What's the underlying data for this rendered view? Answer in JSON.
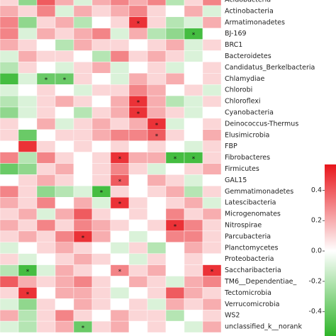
{
  "chart_data": {
    "type": "heatmap",
    "y_categories": [
      "Acidobacteria",
      "Actinobacteria",
      "Armatimonadetes",
      "BJ-169",
      "BRC1",
      "Bacteroidetes",
      "Candidatus_Berkelbacteria",
      "Chlamydiae",
      "Chlorobi",
      "Chloroflexi",
      "Cyanobacteria",
      "Deinococcus-Thermus",
      "Elusimicrobia",
      "FBP",
      "Fibrobacteres",
      "Firmicutes",
      "GAL15",
      "Gemmatimonadetes",
      "Latescibacteria",
      "Microgenomates",
      "Nitrospirae",
      "Parcubacteria",
      "Planctomycetes",
      "Proteobacteria",
      "Saccharibacteria",
      "TM6__Dependentiae_",
      "Tectomicrobia",
      "Verrucomicrobia",
      "WS2",
      "unclassified_k__norank"
    ],
    "values": [
      [
        0.1,
        -0.3,
        0.4,
        0.2,
        -0.1,
        0.2,
        0.3,
        0.2,
        0.3,
        -0.2,
        0.1,
        0.3
      ],
      [
        0.2,
        0.1,
        0.3,
        -0.1,
        0.2,
        0.1,
        0.2,
        0.3,
        0.1,
        0.0,
        0.2,
        -0.1
      ],
      [
        0.3,
        -0.3,
        0.1,
        0.2,
        -0.2,
        0.0,
        0.1,
        0.5,
        0.1,
        -0.2,
        -0.1,
        0.2
      ],
      [
        0.3,
        -0.1,
        0.2,
        0.1,
        0.2,
        0.3,
        -0.1,
        0.2,
        -0.2,
        -0.3,
        -0.5,
        0.0
      ],
      [
        0.2,
        0.1,
        0.0,
        -0.2,
        0.2,
        0.1,
        0.1,
        0.0,
        0.1,
        0.2,
        -0.1,
        0.1
      ],
      [
        -0.1,
        0.2,
        0.1,
        0.1,
        0.0,
        -0.2,
        0.3,
        0.1,
        0.2,
        0.1,
        -0.1,
        0.0
      ],
      [
        -0.2,
        0.1,
        0.0,
        -0.1,
        0.1,
        0.2,
        -0.1,
        0.0,
        0.1,
        -0.1,
        0.0,
        0.1
      ],
      [
        -0.5,
        -0.1,
        -0.4,
        -0.4,
        0.1,
        0.0,
        -0.1,
        0.2,
        0.1,
        0.2,
        0.0,
        0.1
      ],
      [
        -0.1,
        0.0,
        0.1,
        0.0,
        -0.1,
        0.1,
        0.1,
        0.3,
        0.2,
        0.0,
        0.1,
        -0.1
      ],
      [
        -0.2,
        -0.1,
        0.1,
        0.2,
        0.1,
        0.0,
        0.2,
        0.5,
        0.2,
        -0.2,
        -0.1,
        0.1
      ],
      [
        -0.3,
        -0.1,
        0.1,
        0.0,
        -0.2,
        0.1,
        0.2,
        0.5,
        0.2,
        0.1,
        -0.1,
        0.0
      ],
      [
        0.1,
        0.0,
        0.2,
        -0.1,
        0.1,
        0.2,
        0.1,
        0.2,
        0.5,
        -0.1,
        0.0,
        0.1
      ],
      [
        0.1,
        -0.4,
        0.0,
        0.1,
        0.1,
        0.2,
        0.3,
        0.3,
        0.4,
        0.1,
        0.0,
        0.2
      ],
      [
        0.0,
        0.5,
        0.1,
        0.0,
        0.1,
        0.0,
        0.1,
        0.0,
        0.1,
        0.0,
        -0.1,
        0.1
      ],
      [
        0.3,
        -0.2,
        0.3,
        0.1,
        0.0,
        0.1,
        0.5,
        0.2,
        0.2,
        -0.5,
        -0.5,
        0.1
      ],
      [
        -0.4,
        -0.3,
        0.1,
        0.2,
        0.0,
        0.1,
        0.3,
        0.1,
        -0.1,
        0.0,
        0.1,
        0.2
      ],
      [
        0.0,
        0.1,
        0.2,
        0.1,
        0.0,
        0.1,
        0.4,
        0.0,
        0.2,
        0.1,
        -0.1,
        0.0
      ],
      [
        0.3,
        0.1,
        -0.3,
        -0.2,
        -0.1,
        -0.5,
        0.1,
        0.0,
        0.1,
        0.2,
        -0.2,
        0.1
      ],
      [
        0.2,
        0.1,
        0.3,
        0.0,
        0.2,
        -0.1,
        0.5,
        0.1,
        0.0,
        0.1,
        0.2,
        -0.1
      ],
      [
        0.1,
        0.2,
        -0.1,
        0.2,
        0.4,
        0.1,
        0.0,
        0.1,
        0.0,
        0.3,
        0.1,
        0.2
      ],
      [
        0.2,
        0.1,
        0.3,
        0.1,
        0.3,
        0.2,
        0.1,
        0.0,
        0.1,
        0.5,
        0.3,
        0.1
      ],
      [
        0.1,
        0.2,
        0.1,
        0.3,
        0.5,
        0.2,
        0.0,
        -0.1,
        0.0,
        0.3,
        0.3,
        0.1
      ],
      [
        -0.1,
        0.0,
        0.1,
        0.2,
        0.1,
        0.0,
        -0.1,
        0.1,
        -0.2,
        0.0,
        0.2,
        0.1
      ],
      [
        0.1,
        -0.1,
        0.0,
        0.1,
        0.2,
        0.1,
        0.0,
        -0.1,
        0.1,
        0.0,
        0.1,
        0.0
      ],
      [
        -0.2,
        -0.5,
        -0.1,
        0.2,
        0.1,
        0.0,
        0.3,
        0.1,
        0.2,
        0.0,
        0.1,
        0.5
      ],
      [
        0.4,
        0.2,
        0.1,
        0.2,
        0.3,
        0.1,
        0.0,
        0.2,
        0.1,
        -0.1,
        0.2,
        0.3
      ],
      [
        0.1,
        0.5,
        0.0,
        0.2,
        0.2,
        0.1,
        -0.1,
        0.0,
        0.1,
        0.4,
        0.2,
        0.1
      ],
      [
        -0.1,
        -0.3,
        0.1,
        0.0,
        0.2,
        0.1,
        0.0,
        0.1,
        -0.1,
        0.2,
        0.1,
        0.2
      ],
      [
        0.2,
        -0.2,
        0.1,
        0.3,
        0.1,
        0.0,
        0.2,
        0.1,
        0.1,
        -0.2,
        0.0,
        0.1
      ],
      [
        -0.1,
        -0.2,
        0.1,
        0.2,
        -0.4,
        0.1,
        0.2,
        0.0,
        0.1,
        0.0,
        -0.1,
        0.2
      ]
    ],
    "significance_symbol": "*",
    "significant": [
      [
        2,
        7
      ],
      [
        3,
        10
      ],
      [
        7,
        2
      ],
      [
        7,
        3
      ],
      [
        9,
        7
      ],
      [
        10,
        7
      ],
      [
        11,
        8
      ],
      [
        12,
        8
      ],
      [
        14,
        6
      ],
      [
        14,
        9
      ],
      [
        14,
        10
      ],
      [
        16,
        6
      ],
      [
        17,
        5
      ],
      [
        18,
        6
      ],
      [
        20,
        9
      ],
      [
        21,
        4
      ],
      [
        24,
        1
      ],
      [
        24,
        6
      ],
      [
        24,
        11
      ],
      [
        26,
        1
      ],
      [
        29,
        4
      ]
    ],
    "colors": {
      "low": "#2fb52a",
      "mid": "#ffffff",
      "high": "#e8151b"
    },
    "clim": [
      -0.56,
      0.57
    ],
    "cticks": [
      -0.4,
      -0.2,
      {
        "value": 0,
        "label": "0.0"
      },
      0.2,
      0.4
    ]
  }
}
